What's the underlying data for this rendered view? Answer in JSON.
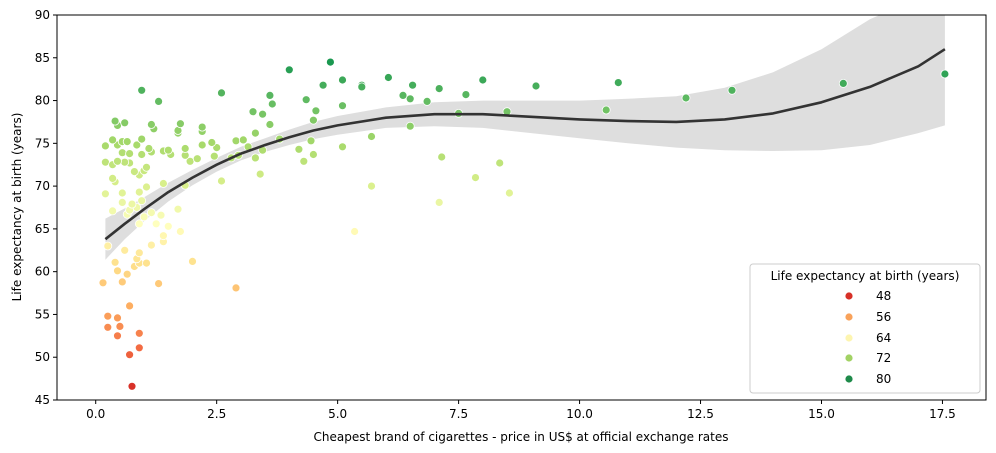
{
  "chart_data": {
    "type": "scatter",
    "xlabel": "Cheapest brand of cigarettes - price in US$ at official exchange rates",
    "ylabel": "Life expectancy at birth (years)",
    "xlim": [
      -0.8,
      18.4
    ],
    "ylim": [
      45,
      90
    ],
    "x_ticks": [
      0.0,
      2.5,
      5.0,
      7.5,
      10.0,
      12.5,
      15.0,
      17.5
    ],
    "x_tick_labels": [
      "0.0",
      "2.5",
      "5.0",
      "7.5",
      "10.0",
      "12.5",
      "15.0",
      "17.5"
    ],
    "y_ticks": [
      45,
      50,
      55,
      60,
      65,
      70,
      75,
      80,
      85,
      90
    ],
    "y_tick_labels": [
      "45",
      "50",
      "55",
      "60",
      "65",
      "70",
      "75",
      "80",
      "85",
      "90"
    ],
    "grid": false,
    "legend": {
      "title": "Life expectancy at birth (years)",
      "placement": "bottom-right",
      "entries": [
        {
          "label": "48",
          "color": "#d73027"
        },
        {
          "label": "56",
          "color": "#f9a25a"
        },
        {
          "label": "64",
          "color": "#fdf5b0"
        },
        {
          "label": "72",
          "color": "#a2d264"
        },
        {
          "label": "80",
          "color": "#1e8a4a"
        }
      ]
    },
    "hue_scale": {
      "vmin": 46.5,
      "vmax": 84.5,
      "colors": [
        "#d73027",
        "#f46d43",
        "#fdae61",
        "#fee08b",
        "#ffffbf",
        "#d9ef8b",
        "#a6d96a",
        "#66bd63",
        "#1a9850"
      ]
    },
    "points": [
      {
        "x": 0.75,
        "y": 46.6
      },
      {
        "x": 0.7,
        "y": 50.3
      },
      {
        "x": 0.9,
        "y": 51.1
      },
      {
        "x": 0.9,
        "y": 52.8
      },
      {
        "x": 0.45,
        "y": 52.5
      },
      {
        "x": 0.5,
        "y": 53.6
      },
      {
        "x": 0.25,
        "y": 53.5
      },
      {
        "x": 0.45,
        "y": 54.6
      },
      {
        "x": 0.25,
        "y": 54.8
      },
      {
        "x": 0.7,
        "y": 56.0
      },
      {
        "x": 0.15,
        "y": 58.7
      },
      {
        "x": 0.55,
        "y": 58.8
      },
      {
        "x": 1.3,
        "y": 58.6
      },
      {
        "x": 2.9,
        "y": 58.1
      },
      {
        "x": 0.45,
        "y": 60.1
      },
      {
        "x": 0.65,
        "y": 59.7
      },
      {
        "x": 0.8,
        "y": 60.6
      },
      {
        "x": 0.9,
        "y": 61.0
      },
      {
        "x": 1.05,
        "y": 61.0
      },
      {
        "x": 0.85,
        "y": 61.5
      },
      {
        "x": 0.4,
        "y": 61.1
      },
      {
        "x": 0.6,
        "y": 62.5
      },
      {
        "x": 0.9,
        "y": 62.2
      },
      {
        "x": 0.25,
        "y": 63.0
      },
      {
        "x": 1.15,
        "y": 63.1
      },
      {
        "x": 1.4,
        "y": 63.5
      },
      {
        "x": 1.4,
        "y": 64.2
      },
      {
        "x": 1.75,
        "y": 64.7
      },
      {
        "x": 1.5,
        "y": 65.3
      },
      {
        "x": 1.25,
        "y": 65.6
      },
      {
        "x": 0.9,
        "y": 65.6
      },
      {
        "x": 2.0,
        "y": 61.2
      },
      {
        "x": 5.35,
        "y": 64.7
      },
      {
        "x": 0.65,
        "y": 66.7
      },
      {
        "x": 0.85,
        "y": 67.5
      },
      {
        "x": 0.7,
        "y": 67.2
      },
      {
        "x": 1.0,
        "y": 66.4
      },
      {
        "x": 1.15,
        "y": 66.9
      },
      {
        "x": 1.35,
        "y": 66.6
      },
      {
        "x": 1.7,
        "y": 67.3
      },
      {
        "x": 0.35,
        "y": 67.1
      },
      {
        "x": 0.55,
        "y": 68.1
      },
      {
        "x": 0.75,
        "y": 67.9
      },
      {
        "x": 0.95,
        "y": 68.3
      },
      {
        "x": 0.2,
        "y": 69.1
      },
      {
        "x": 0.55,
        "y": 69.2
      },
      {
        "x": 0.9,
        "y": 69.3
      },
      {
        "x": 1.05,
        "y": 69.9
      },
      {
        "x": 0.4,
        "y": 70.5
      },
      {
        "x": 0.35,
        "y": 70.9
      },
      {
        "x": 1.4,
        "y": 70.3
      },
      {
        "x": 1.85,
        "y": 70.1
      },
      {
        "x": 2.6,
        "y": 70.6
      },
      {
        "x": 5.7,
        "y": 70.0
      },
      {
        "x": 7.1,
        "y": 68.1
      },
      {
        "x": 7.85,
        "y": 71.0
      },
      {
        "x": 8.55,
        "y": 69.2
      },
      {
        "x": 0.9,
        "y": 71.3
      },
      {
        "x": 0.8,
        "y": 71.7
      },
      {
        "x": 1.0,
        "y": 71.8
      },
      {
        "x": 0.7,
        "y": 72.7
      },
      {
        "x": 0.6,
        "y": 72.8
      },
      {
        "x": 0.2,
        "y": 72.8
      },
      {
        "x": 0.35,
        "y": 72.5
      },
      {
        "x": 0.45,
        "y": 72.9
      },
      {
        "x": 1.05,
        "y": 72.2
      },
      {
        "x": 3.4,
        "y": 71.4
      },
      {
        "x": 1.95,
        "y": 72.9
      },
      {
        "x": 2.1,
        "y": 73.2
      },
      {
        "x": 2.8,
        "y": 73.3
      },
      {
        "x": 3.3,
        "y": 73.3
      },
      {
        "x": 4.3,
        "y": 72.9
      },
      {
        "x": 7.15,
        "y": 73.4
      },
      {
        "x": 8.35,
        "y": 72.7
      },
      {
        "x": 0.55,
        "y": 73.9
      },
      {
        "x": 0.7,
        "y": 73.8
      },
      {
        "x": 0.95,
        "y": 73.7
      },
      {
        "x": 1.15,
        "y": 74.0
      },
      {
        "x": 1.4,
        "y": 74.1
      },
      {
        "x": 1.55,
        "y": 73.7
      },
      {
        "x": 1.85,
        "y": 73.6
      },
      {
        "x": 2.45,
        "y": 73.5
      },
      {
        "x": 2.95,
        "y": 73.6
      },
      {
        "x": 0.2,
        "y": 74.7
      },
      {
        "x": 0.45,
        "y": 74.8
      },
      {
        "x": 0.55,
        "y": 75.2
      },
      {
        "x": 0.85,
        "y": 74.8
      },
      {
        "x": 1.1,
        "y": 74.4
      },
      {
        "x": 1.5,
        "y": 74.2
      },
      {
        "x": 1.85,
        "y": 74.4
      },
      {
        "x": 2.2,
        "y": 74.8
      },
      {
        "x": 2.5,
        "y": 74.5
      },
      {
        "x": 3.15,
        "y": 74.6
      },
      {
        "x": 3.45,
        "y": 74.2
      },
      {
        "x": 4.2,
        "y": 74.3
      },
      {
        "x": 4.5,
        "y": 73.7
      },
      {
        "x": 5.1,
        "y": 74.6
      },
      {
        "x": 0.35,
        "y": 75.4
      },
      {
        "x": 0.65,
        "y": 75.2
      },
      {
        "x": 0.95,
        "y": 75.5
      },
      {
        "x": 2.4,
        "y": 75.1
      },
      {
        "x": 2.9,
        "y": 75.3
      },
      {
        "x": 3.05,
        "y": 75.4
      },
      {
        "x": 3.8,
        "y": 75.5
      },
      {
        "x": 4.45,
        "y": 75.3
      },
      {
        "x": 5.7,
        "y": 75.8
      },
      {
        "x": 1.7,
        "y": 76.2
      },
      {
        "x": 2.2,
        "y": 76.4
      },
      {
        "x": 3.3,
        "y": 76.2
      },
      {
        "x": 1.2,
        "y": 76.7
      },
      {
        "x": 1.7,
        "y": 76.5
      },
      {
        "x": 0.45,
        "y": 77.1
      },
      {
        "x": 0.6,
        "y": 77.4
      },
      {
        "x": 0.4,
        "y": 77.6
      },
      {
        "x": 1.15,
        "y": 77.2
      },
      {
        "x": 1.75,
        "y": 77.3
      },
      {
        "x": 2.2,
        "y": 76.9
      },
      {
        "x": 3.6,
        "y": 77.2
      },
      {
        "x": 4.5,
        "y": 77.7
      },
      {
        "x": 6.5,
        "y": 77.0
      },
      {
        "x": 3.25,
        "y": 78.7
      },
      {
        "x": 3.45,
        "y": 78.4
      },
      {
        "x": 4.55,
        "y": 78.8
      },
      {
        "x": 7.5,
        "y": 78.5
      },
      {
        "x": 8.5,
        "y": 78.7
      },
      {
        "x": 3.65,
        "y": 79.6
      },
      {
        "x": 5.1,
        "y": 79.4
      },
      {
        "x": 6.5,
        "y": 80.2
      },
      {
        "x": 6.85,
        "y": 79.9
      },
      {
        "x": 10.55,
        "y": 78.9
      },
      {
        "x": 1.3,
        "y": 79.9
      },
      {
        "x": 3.6,
        "y": 80.6
      },
      {
        "x": 4.35,
        "y": 80.1
      },
      {
        "x": 6.35,
        "y": 80.6
      },
      {
        "x": 7.65,
        "y": 80.7
      },
      {
        "x": 12.2,
        "y": 80.3
      },
      {
        "x": 0.95,
        "y": 81.2
      },
      {
        "x": 2.6,
        "y": 80.9
      },
      {
        "x": 5.5,
        "y": 81.8
      },
      {
        "x": 5.5,
        "y": 81.6
      },
      {
        "x": 4.7,
        "y": 81.8
      },
      {
        "x": 6.55,
        "y": 81.8
      },
      {
        "x": 7.1,
        "y": 81.4
      },
      {
        "x": 9.1,
        "y": 81.7
      },
      {
        "x": 13.15,
        "y": 81.2
      },
      {
        "x": 15.45,
        "y": 82.0
      },
      {
        "x": 10.8,
        "y": 82.1
      },
      {
        "x": 8.0,
        "y": 82.4
      },
      {
        "x": 5.1,
        "y": 82.4
      },
      {
        "x": 6.05,
        "y": 82.7
      },
      {
        "x": 17.55,
        "y": 83.1
      },
      {
        "x": 4.0,
        "y": 83.6
      },
      {
        "x": 4.85,
        "y": 84.5
      }
    ],
    "trend_line": {
      "x": [
        0.2,
        0.6,
        1.0,
        1.5,
        2.0,
        2.5,
        3.0,
        3.5,
        4.0,
        4.5,
        5.0,
        6.0,
        7.0,
        8.0,
        9.0,
        10.0,
        11.0,
        12.0,
        13.0,
        14.0,
        15.0,
        16.0,
        17.0,
        17.55
      ],
      "y": [
        63.8,
        65.6,
        67.3,
        69.3,
        71.0,
        72.5,
        73.8,
        74.8,
        75.7,
        76.5,
        77.1,
        78.0,
        78.4,
        78.4,
        78.1,
        77.8,
        77.6,
        77.5,
        77.8,
        78.5,
        79.8,
        81.6,
        84.0,
        86.0
      ],
      "ci_lower": [
        61.4,
        63.8,
        65.9,
        68.2,
        70.1,
        71.7,
        73.0,
        74.0,
        74.8,
        75.5,
        76.0,
        76.8,
        77.0,
        76.8,
        76.2,
        75.6,
        75.0,
        74.5,
        74.2,
        74.1,
        74.2,
        74.8,
        76.2,
        77.1
      ],
      "ci_upper": [
        66.2,
        67.4,
        68.7,
        70.4,
        71.9,
        73.3,
        74.6,
        75.6,
        76.6,
        77.5,
        78.2,
        79.2,
        79.8,
        80.0,
        80.0,
        80.0,
        80.2,
        80.5,
        81.5,
        83.3,
        86.0,
        89.5,
        92.0,
        93.0
      ]
    }
  }
}
